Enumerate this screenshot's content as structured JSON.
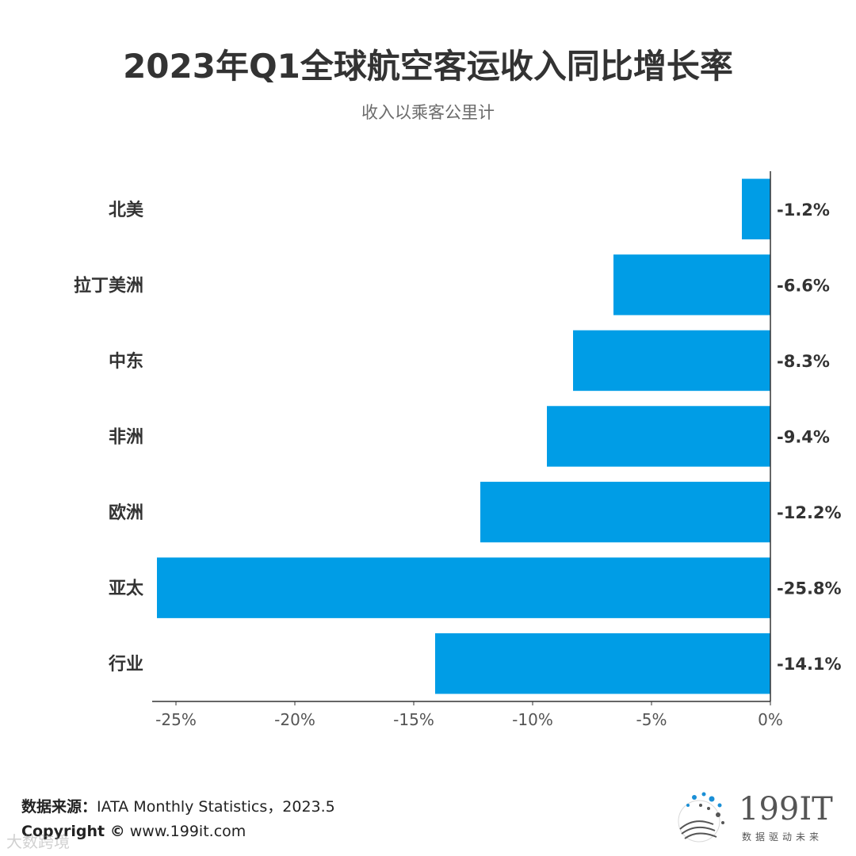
{
  "title": "2023年Q1全球航空客运收入同比增长率",
  "subtitle": "收入以乘客公里计",
  "chart_data": {
    "type": "bar",
    "orientation": "horizontal",
    "categories": [
      "北美",
      "拉丁美洲",
      "中东",
      "非洲",
      "欧洲",
      "亚太",
      "行业"
    ],
    "values": [
      -1.2,
      -6.6,
      -8.3,
      -9.4,
      -12.2,
      -25.8,
      -14.1
    ],
    "value_labels": [
      "-1.2%",
      "-6.6%",
      "-8.3%",
      "-9.4%",
      "-12.2%",
      "-25.8%",
      "-14.1%"
    ],
    "xlim": [
      -26,
      0
    ],
    "xticks": [
      -25,
      -20,
      -15,
      -10,
      -5,
      0
    ],
    "xtick_labels": [
      "-25%",
      "-20%",
      "-15%",
      "-10%",
      "-5%",
      "0%"
    ],
    "bar_color": "#009de6",
    "grid": false
  },
  "source": {
    "label": "数据来源：",
    "value": "IATA Monthly Statistics，2023.5"
  },
  "copyright": {
    "label": "Copyright ©",
    "value": "www.199it.com"
  },
  "watermark": "大数跨境",
  "logo": {
    "text": "199IT",
    "tagline": "数据驱动未来"
  }
}
